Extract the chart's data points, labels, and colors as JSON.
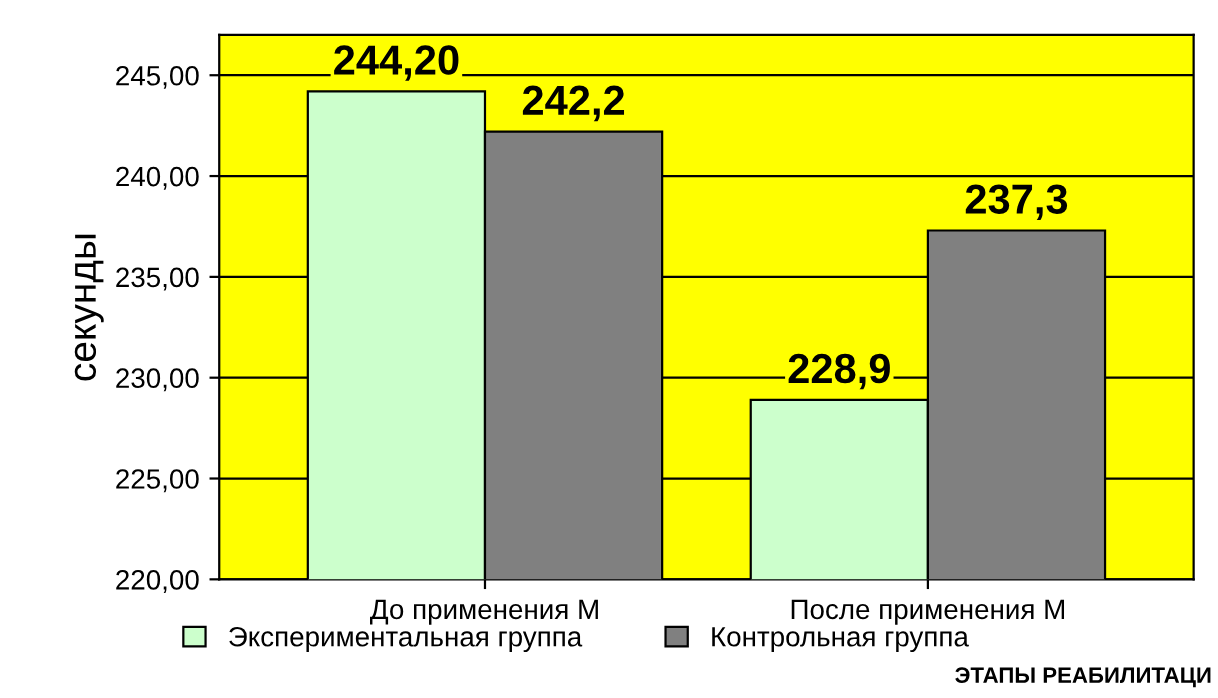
{
  "chart_data": {
    "type": "bar",
    "ylabel": "секунды",
    "xlabel": "ЭТАПЫ РЕАБИЛИТАЦИ",
    "categories": [
      "До применения М",
      "После применения М"
    ],
    "series": [
      {
        "name": "Экспериментальная группа",
        "color": "#ccffcc",
        "values": [
          244.2,
          228.9
        ],
        "value_labels": [
          "244,20",
          "228,9"
        ]
      },
      {
        "name": "Контрольная группа",
        "color": "#808080",
        "values": [
          242.2,
          237.3
        ],
        "value_labels": [
          "242,2",
          "237,3"
        ]
      }
    ],
    "ylim": [
      220,
      247
    ],
    "yticks": [
      {
        "value": 220,
        "label": "220,00"
      },
      {
        "value": 225,
        "label": "225,00"
      },
      {
        "value": 230,
        "label": "230,00"
      },
      {
        "value": 235,
        "label": "235,00"
      },
      {
        "value": 240,
        "label": "240,00"
      },
      {
        "value": 245,
        "label": "245,00"
      }
    ],
    "grid": "y",
    "legend": "bottom"
  }
}
